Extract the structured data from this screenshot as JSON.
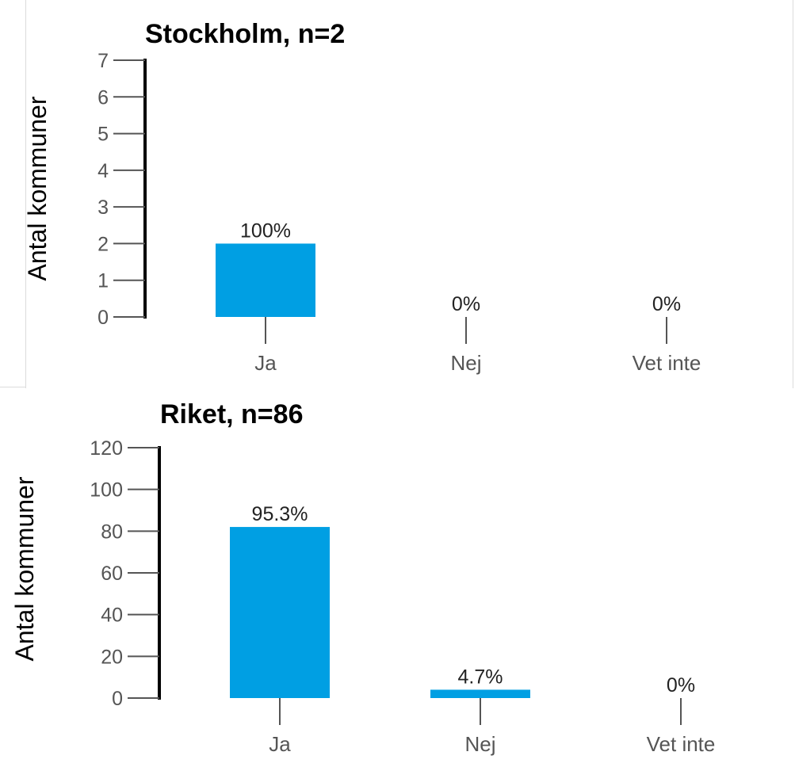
{
  "colors": {
    "bar": "#009fe3",
    "axis": "#000000",
    "tick": "#555555",
    "frame": "#dcdcdc"
  },
  "chart_data": [
    {
      "type": "bar",
      "title": "Stockholm, n=2",
      "ylabel": "Antal kommuner",
      "xlabel": "",
      "categories": [
        "Ja",
        "Nej",
        "Vet inte"
      ],
      "values": [
        2,
        0,
        0
      ],
      "data_labels": [
        "100%",
        "0%",
        "0%"
      ],
      "ylim": [
        0,
        7
      ],
      "yticks": [
        0,
        1,
        2,
        3,
        4,
        5,
        6,
        7
      ],
      "grid": false,
      "legend": "none"
    },
    {
      "type": "bar",
      "title": "Riket, n=86",
      "ylabel": "Antal kommuner",
      "xlabel": "",
      "categories": [
        "Ja",
        "Nej",
        "Vet inte"
      ],
      "values": [
        82,
        4,
        0
      ],
      "data_labels": [
        "95.3%",
        "4.7%",
        "0%"
      ],
      "ylim": [
        0,
        120
      ],
      "yticks": [
        0,
        20,
        40,
        60,
        80,
        100,
        120
      ],
      "grid": false,
      "legend": "none"
    }
  ]
}
